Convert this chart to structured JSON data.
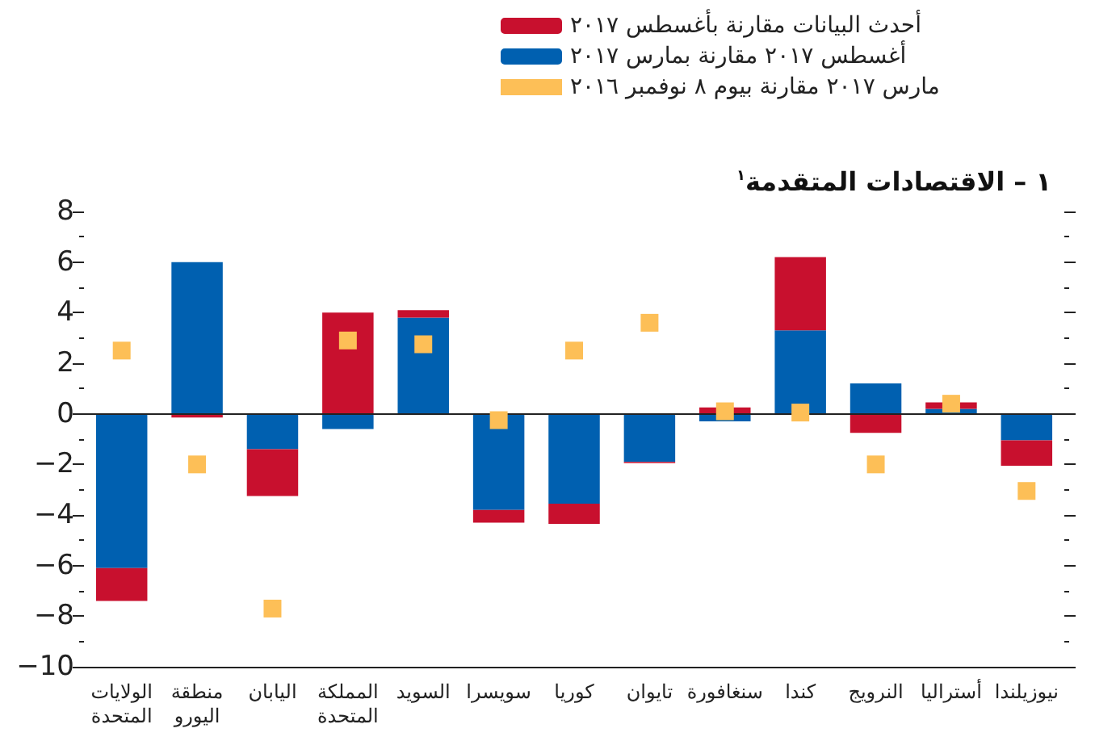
{
  "chart_data": {
    "type": "bar",
    "stacked": true,
    "title": "١ – الاقتصادات المتقدمة$^{١}$",
    "categories": [
      "الولايات\nالمتحدة",
      "منطقة\nاليورو",
      "اليابان",
      "المملكة\nالمتحدة",
      "السويد",
      "سويسرا",
      "كوريا",
      "تايوان",
      "سنغافورة",
      "كندا",
      "النرويج",
      "أستراليا",
      "نيوزيلندا"
    ],
    "series": [
      {
        "name": "أغسطس ٢٠١٧ مقارنة بمارس ٢٠١٧",
        "color": "#0060b0",
        "values": [
          -6.1,
          6.0,
          -1.4,
          -0.6,
          3.8,
          -3.8,
          -3.55,
          -1.9,
          -0.3,
          3.3,
          1.2,
          0.2,
          -1.05
        ]
      },
      {
        "name": "أحدث البيانات مقارنة بأغسطس ٢٠١٧",
        "color": "#c8102e",
        "values": [
          -1.3,
          -0.15,
          -1.85,
          4.0,
          0.3,
          -0.5,
          -0.8,
          -0.05,
          0.25,
          2.9,
          -0.75,
          0.25,
          -1.0
        ]
      },
      {
        "name": "مارس ٢٠١٧ مقارنة بيوم ٨ نوفمبر ٢٠١٦",
        "color": "#fdbf57",
        "type": "scatter",
        "marker": "square",
        "values": [
          2.5,
          -2.0,
          -7.7,
          2.9,
          2.75,
          -0.25,
          2.5,
          3.6,
          0.1,
          0.05,
          -2.0,
          0.4,
          -3.05
        ]
      }
    ],
    "ylim": [
      -10,
      8
    ],
    "yticks": [
      -10,
      {
        "value": -9,
        "label": null
      },
      -8,
      {
        "value": -7,
        "label": null
      },
      -6,
      {
        "value": -5,
        "label": null
      },
      -4,
      {
        "value": -3,
        "label": null
      },
      -2,
      {
        "value": -1,
        "label": null
      },
      0,
      {
        "value": 1,
        "label": null
      },
      2,
      {
        "value": 3,
        "label": null
      },
      4,
      {
        "value": 5,
        "label": null
      },
      6,
      {
        "value": 7,
        "label": null
      },
      8
    ],
    "ref_lines": [
      {
        "axis": "y",
        "value": 0,
        "color": "#222222",
        "line_style": "solid"
      }
    ],
    "grid": false,
    "legend": "top"
  }
}
